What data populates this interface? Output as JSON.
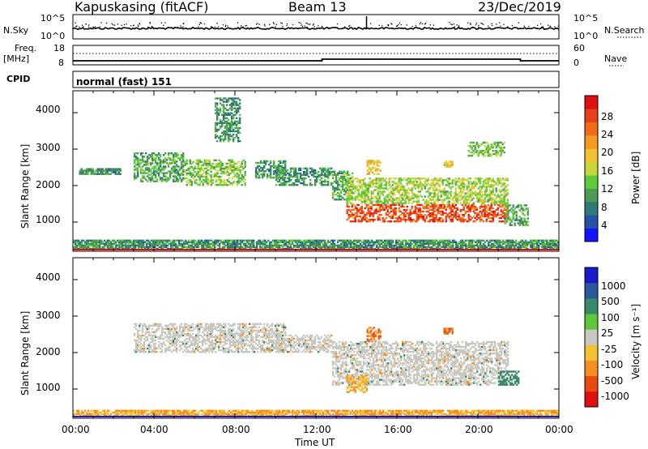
{
  "header": {
    "station": "Kapuskasing (fitACF)",
    "beam": "Beam 13",
    "date": "23/Dec/2019"
  },
  "top_panels": {
    "nsky_label": "N.Sky",
    "nsky_ticks": [
      "10^5",
      "10^0"
    ],
    "nsearch_label": "N.Search",
    "nsearch_ticks": [
      "10^5",
      "10^0"
    ],
    "freq_label": "Freq.",
    "freq_unit": "[MHz]",
    "freq_ticks": [
      "18",
      "8"
    ],
    "nave_label": "Nave",
    "nave_ticks": [
      "60",
      "0"
    ],
    "cpid_label": "CPID",
    "cpid_value": "normal (fast) 151"
  },
  "power_panel": {
    "ylabel": "Slant Range [km]",
    "yticks": [
      "4000",
      "3000",
      "2000",
      "1000"
    ],
    "colorbar_label": "Power [dB]",
    "colorbar_ticks": [
      "28",
      "24",
      "20",
      "16",
      "12",
      "8",
      "4"
    ],
    "colorbar_colors": [
      "#1313ff",
      "#2452a8",
      "#2f7a7a",
      "#4f9a52",
      "#5ecc3a",
      "#c8d63a",
      "#f2c230",
      "#f59a25",
      "#f06a18",
      "#e8401a",
      "#e01010"
    ]
  },
  "velocity_panel": {
    "ylabel": "Slant Range [km]",
    "yticks": [
      "4000",
      "3000",
      "2000",
      "1000"
    ],
    "colorbar_label": "Velocity [m s⁻¹]",
    "colorbar_ticks": [
      "1000",
      "500",
      "100",
      "25",
      "-25",
      "-100",
      "-500",
      "-1000"
    ],
    "colorbar_colors": [
      "#1a1acc",
      "#2a5a9a",
      "#3a8a6a",
      "#5ec83a",
      "#c8c8c0",
      "#f2c230",
      "#f59020",
      "#e84a10",
      "#e01010"
    ]
  },
  "xaxis": {
    "label": "Time UT",
    "ticks": [
      "00:00",
      "04:00",
      "08:00",
      "12:00",
      "16:00",
      "20:00",
      "00:00"
    ]
  },
  "chart_data": [
    {
      "type": "heatmap",
      "title": "Power",
      "ylabel": "Slant Range [km]",
      "xlabel": "Time UT",
      "xlim": [
        0,
        24
      ],
      "ylim": [
        200,
        4600
      ],
      "colorbar": {
        "label": "Power [dB]",
        "range": [
          0,
          30
        ]
      },
      "features": [
        {
          "t": [
            0.3,
            2.4
          ],
          "range": [
            2300,
            2500
          ],
          "value": 8
        },
        {
          "t": [
            3.0,
            5.5
          ],
          "range": [
            2100,
            2900
          ],
          "value": 10
        },
        {
          "t": [
            5.5,
            8.5
          ],
          "range": [
            2000,
            2700
          ],
          "value": 12
        },
        {
          "t": [
            7.0,
            8.3
          ],
          "range": [
            3200,
            4400
          ],
          "value": 8
        },
        {
          "t": [
            9.0,
            10.5
          ],
          "range": [
            2200,
            2700
          ],
          "value": 8
        },
        {
          "t": [
            10.0,
            12.8
          ],
          "range": [
            2000,
            2500
          ],
          "value": 8
        },
        {
          "t": [
            12.8,
            13.8
          ],
          "range": [
            1600,
            2400
          ],
          "value": 10
        },
        {
          "t": [
            13.5,
            21.5
          ],
          "range": [
            1000,
            1500
          ],
          "value": 26
        },
        {
          "t": [
            13.5,
            21.5
          ],
          "range": [
            1500,
            2200
          ],
          "value": 14
        },
        {
          "t": [
            14.5,
            15.2
          ],
          "range": [
            2300,
            2700
          ],
          "value": 18
        },
        {
          "t": [
            18.3,
            18.8
          ],
          "range": [
            2500,
            2700
          ],
          "value": 16
        },
        {
          "t": [
            19.5,
            21.3
          ],
          "range": [
            2800,
            3200
          ],
          "value": 12
        },
        {
          "t": [
            21.3,
            22.5
          ],
          "range": [
            900,
            1500
          ],
          "value": 10
        },
        {
          "t": [
            0,
            24
          ],
          "range": [
            250,
            500
          ],
          "value": 8
        }
      ]
    },
    {
      "type": "heatmap",
      "title": "Velocity",
      "ylabel": "Slant Range [km]",
      "xlabel": "Time UT",
      "xlim": [
        0,
        24
      ],
      "ylim": [
        200,
        4600
      ],
      "colorbar": {
        "label": "Velocity [m s⁻¹]",
        "range": [
          -1000,
          1000
        ]
      },
      "features": [
        {
          "t": [
            3.0,
            10.5
          ],
          "range": [
            2000,
            2800
          ],
          "value": 0
        },
        {
          "t": [
            10.0,
            12.8
          ],
          "range": [
            2000,
            2500
          ],
          "value": 0
        },
        {
          "t": [
            12.8,
            21.5
          ],
          "range": [
            1100,
            2300
          ],
          "value": 0
        },
        {
          "t": [
            14.5,
            15.2
          ],
          "range": [
            2300,
            2700
          ],
          "value": -500
        },
        {
          "t": [
            13.5,
            14.5
          ],
          "range": [
            900,
            1400
          ],
          "value": -100
        },
        {
          "t": [
            18.3,
            18.8
          ],
          "range": [
            2500,
            2700
          ],
          "value": -500
        },
        {
          "t": [
            21.0,
            22.0
          ],
          "range": [
            1100,
            1500
          ],
          "value": 100
        },
        {
          "t": [
            0,
            24
          ],
          "range": [
            250,
            450
          ],
          "value": -100
        }
      ]
    }
  ]
}
